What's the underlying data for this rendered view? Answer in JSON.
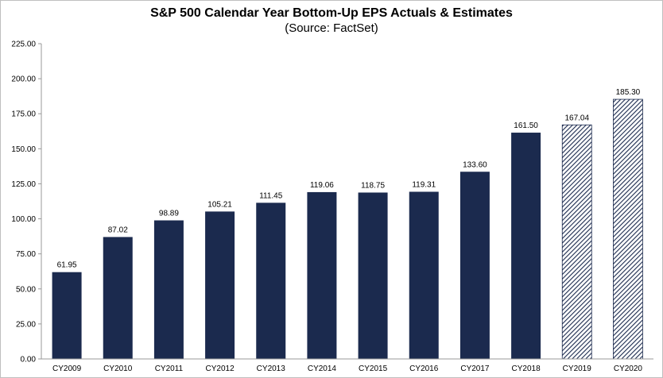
{
  "chart_data": {
    "type": "bar",
    "title": "S&P 500 Calendar Year Bottom-Up EPS Actuals & Estimates",
    "subtitle": "(Source: FactSet)",
    "categories": [
      "CY2009",
      "CY2010",
      "CY2011",
      "CY2012",
      "CY2013",
      "CY2014",
      "CY2015",
      "CY2016",
      "CY2017",
      "CY2018",
      "CY2019",
      "CY2020"
    ],
    "values": [
      61.95,
      87.02,
      98.89,
      105.21,
      111.45,
      119.06,
      118.75,
      119.31,
      133.6,
      161.5,
      167.04,
      185.3
    ],
    "value_labels": [
      "61.95",
      "87.02",
      "98.89",
      "105.21",
      "111.45",
      "119.06",
      "118.75",
      "119.31",
      "133.60",
      "161.50",
      "167.04",
      "185.30"
    ],
    "bar_style": [
      "actual",
      "actual",
      "actual",
      "actual",
      "actual",
      "actual",
      "actual",
      "actual",
      "actual",
      "actual",
      "estimate",
      "estimate"
    ],
    "yticks": [
      "0.00",
      "25.00",
      "50.00",
      "75.00",
      "100.00",
      "125.00",
      "150.00",
      "175.00",
      "200.00",
      "225.00"
    ],
    "ylim": [
      0,
      225
    ],
    "grid": false,
    "legend": "none",
    "colors": {
      "actual": "#1b2a4e",
      "estimate_stripe": "#1b2a4e",
      "axis": "#999999"
    }
  }
}
